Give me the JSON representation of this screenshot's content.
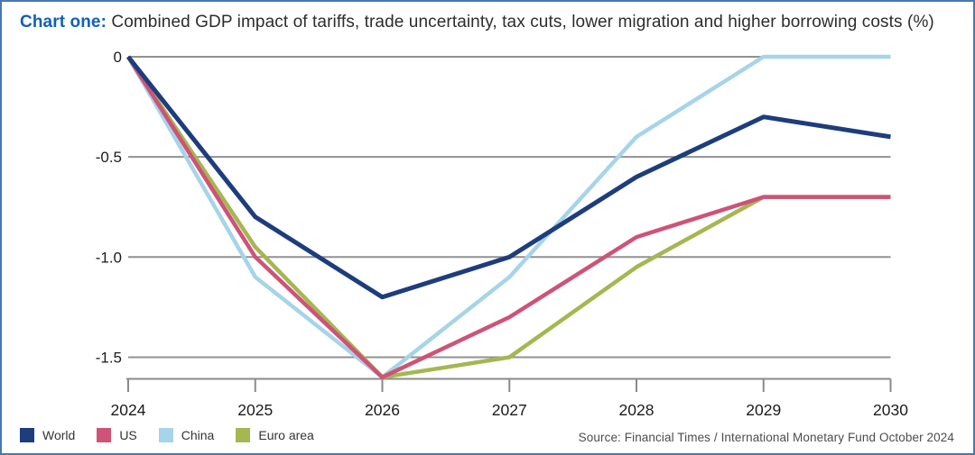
{
  "header": {
    "title_prefix": "Chart one:",
    "title_rest": " Combined GDP impact of tariffs, trade uncertainty, tax cuts, lower migration and higher borrowing costs (%)"
  },
  "chart_data": {
    "type": "line",
    "title": "Chart one: Combined GDP impact of tariffs, trade uncertainty, tax cuts, lower migration and higher borrowing costs (%)",
    "x": [
      2024,
      2025,
      2026,
      2027,
      2028,
      2029,
      2030
    ],
    "series": [
      {
        "name": "World",
        "color": "#1d3d7c",
        "stroke_width": 5,
        "values": [
          0,
          -0.8,
          -1.2,
          -1.0,
          -0.6,
          -0.3,
          -0.4
        ]
      },
      {
        "name": "US",
        "color": "#cf5277",
        "stroke_width": 4.5,
        "values": [
          0,
          -1.0,
          -1.6,
          -1.3,
          -0.9,
          -0.7,
          -0.7
        ]
      },
      {
        "name": "China",
        "color": "#a6d4e8",
        "stroke_width": 4.5,
        "values": [
          0,
          -1.1,
          -1.6,
          -1.1,
          -0.4,
          0,
          0
        ]
      },
      {
        "name": "Euro area",
        "color": "#a4b751",
        "stroke_width": 4.5,
        "values": [
          0,
          -0.95,
          -1.6,
          -1.5,
          -1.05,
          -0.7,
          -0.7
        ]
      }
    ],
    "draw_order": [
      "China",
      "Euro area",
      "US",
      "World"
    ],
    "ylim": [
      -1.61,
      0
    ],
    "yticks": [
      0,
      -0.5,
      -1.0,
      -1.5
    ],
    "ytick_labels": [
      "0",
      "-0.5",
      "-1.0",
      "-1.5"
    ],
    "xtick_labels": [
      "2024",
      "2025",
      "2026",
      "2027",
      "2028",
      "2029",
      "2030"
    ],
    "grid": true,
    "legend_position": "bottom-left",
    "grid_color": "#919191",
    "axis_color": "#8a8a8a",
    "tick_label_color": "#1c1c1c"
  },
  "footer": {
    "source": "Source: Financial Times / International Monetary Fund October 2024"
  }
}
